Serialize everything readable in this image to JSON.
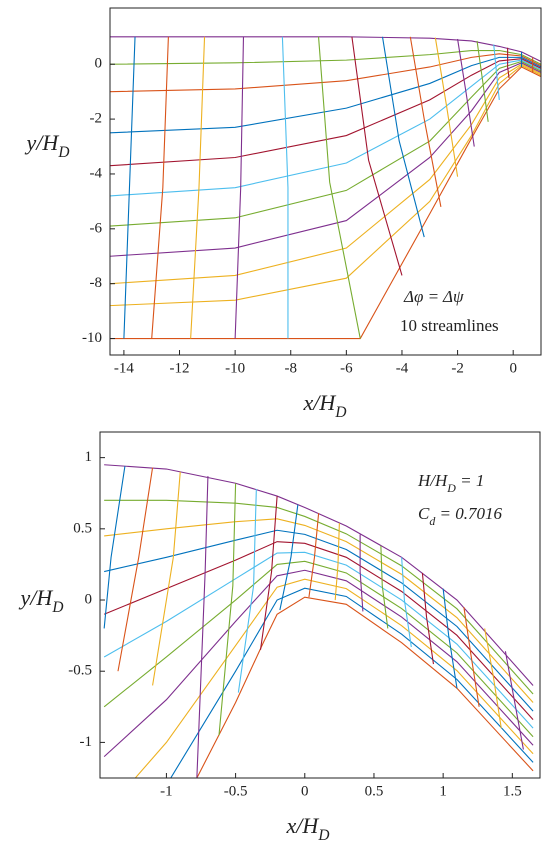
{
  "chart_data": [
    {
      "type": "line",
      "xlim": [
        -14.5,
        1
      ],
      "ylim": [
        -10.6,
        2.05
      ],
      "xticks": [
        -14,
        -12,
        -10,
        -8,
        -6,
        -4,
        -2,
        0
      ],
      "yticks": [
        -10,
        -8,
        -6,
        -4,
        -2,
        0
      ],
      "xlabel": [
        "x/H",
        "D"
      ],
      "ylabel": [
        "y/H",
        "D"
      ],
      "annotations": [
        [
          "Δφ = Δψ"
        ],
        [
          "10 streamlines"
        ]
      ],
      "series": [
        {
          "color": "#7E2F8E",
          "x": [
            -14.5,
            -10,
            -6,
            -3,
            -1.5,
            -0.5,
            0.3,
            1
          ],
          "y": [
            1,
            1,
            1,
            0.95,
            0.85,
            0.65,
            0.45,
            0.1
          ]
        },
        {
          "color": "#77AC30",
          "x": [
            -14.5,
            -10,
            -6,
            -3,
            -1.5,
            -0.5,
            0.3,
            1
          ],
          "y": [
            0,
            0.05,
            0.15,
            0.35,
            0.5,
            0.5,
            0.35,
            0
          ]
        },
        {
          "color": "#D95319",
          "x": [
            -14.5,
            -10,
            -6,
            -3,
            -1.5,
            -0.5,
            0.3,
            1
          ],
          "y": [
            -1,
            -0.9,
            -0.6,
            -0.1,
            0.25,
            0.38,
            0.3,
            -0.05
          ]
        },
        {
          "color": "#0072BD",
          "x": [
            -14.5,
            -10,
            -6,
            -3,
            -1.5,
            -0.5,
            0.3,
            1
          ],
          "y": [
            -2.5,
            -2.3,
            -1.6,
            -0.7,
            -0.05,
            0.25,
            0.25,
            -0.1
          ]
        },
        {
          "color": "#A2142F",
          "x": [
            -14.5,
            -10,
            -6,
            -3,
            -1.5,
            -0.5,
            0.3,
            1
          ],
          "y": [
            -3.7,
            -3.4,
            -2.6,
            -1.3,
            -0.4,
            0.12,
            0.2,
            -0.15
          ]
        },
        {
          "color": "#4DBEEE",
          "x": [
            -14.5,
            -10,
            -6,
            -3,
            -1.5,
            -0.5,
            0.3,
            1
          ],
          "y": [
            -4.8,
            -4.5,
            -3.6,
            -2,
            -0.8,
            0,
            0.15,
            -0.2
          ]
        },
        {
          "color": "#77AC30",
          "x": [
            -14.5,
            -10,
            -6,
            -3,
            -1.5,
            -0.5,
            0.3,
            1
          ],
          "y": [
            -5.9,
            -5.6,
            -4.6,
            -2.8,
            -1.2,
            -0.15,
            0.1,
            -0.25
          ]
        },
        {
          "color": "#7E2F8E",
          "x": [
            -14.5,
            -10,
            -6,
            -3,
            -1.5,
            -0.5,
            0.3,
            1
          ],
          "y": [
            -7,
            -6.7,
            -5.7,
            -3.4,
            -1.7,
            -0.3,
            0.05,
            -0.3
          ]
        },
        {
          "color": "#EDB120",
          "x": [
            -14.5,
            -10,
            -6,
            -3,
            -1.5,
            -0.5,
            0.3,
            1
          ],
          "y": [
            -8,
            -7.7,
            -6.7,
            -4.2,
            -2.2,
            -0.5,
            0,
            -0.35
          ]
        },
        {
          "color": "#EDB120",
          "x": [
            -14.5,
            -10,
            -6,
            -3,
            -1.5,
            -0.5,
            0.3,
            1
          ],
          "y": [
            -8.8,
            -8.6,
            -7.8,
            -5,
            -2.6,
            -0.7,
            -0.05,
            -0.4
          ]
        },
        {
          "color": "#D95319",
          "x": [
            -14.5,
            -10,
            -5.5,
            -3,
            -1.5,
            -0.5,
            0.3,
            1
          ],
          "y": [
            -10,
            -10,
            -10,
            -5.45,
            -2.7,
            -0.9,
            -0.1,
            -0.45
          ]
        },
        {
          "color": "#0072BD",
          "x": [
            -13.6,
            -13.8,
            -14
          ],
          "y": [
            1,
            -4.5,
            -10
          ]
        },
        {
          "color": "#D95319",
          "x": [
            -12.4,
            -12.6,
            -13
          ],
          "y": [
            1,
            -4.5,
            -10
          ]
        },
        {
          "color": "#EDB120",
          "x": [
            -11.1,
            -11.3,
            -11.6
          ],
          "y": [
            1,
            -4.5,
            -10
          ]
        },
        {
          "color": "#7E2F8E",
          "x": [
            -9.7,
            -9.8,
            -10
          ],
          "y": [
            1,
            -4.5,
            -10
          ]
        },
        {
          "color": "#4DBEEE",
          "x": [
            -8.3,
            -8.1,
            -8.1
          ],
          "y": [
            1,
            -4.5,
            -10
          ]
        },
        {
          "color": "#77AC30",
          "x": [
            -7,
            -6.6,
            -5.5
          ],
          "y": [
            1,
            -4.3,
            -10
          ]
        },
        {
          "color": "#A2142F",
          "x": [
            -5.8,
            -5.2,
            -4
          ],
          "y": [
            1,
            -3.5,
            -7.7
          ]
        },
        {
          "color": "#0072BD",
          "x": [
            -4.7,
            -4.1,
            -3.2
          ],
          "y": [
            1,
            -2.8,
            -6.3
          ]
        },
        {
          "color": "#D95319",
          "x": [
            -3.7,
            -3.2,
            -2.6
          ],
          "y": [
            1,
            -2,
            -5.2
          ]
        },
        {
          "color": "#EDB120",
          "x": [
            -2.8,
            -2.4,
            -2
          ],
          "y": [
            0.97,
            -1.5,
            -4.1
          ]
        },
        {
          "color": "#7E2F8E",
          "x": [
            -2,
            -1.7,
            -1.4
          ],
          "y": [
            0.92,
            -1,
            -3
          ]
        },
        {
          "color": "#77AC30",
          "x": [
            -1.3,
            -1.1,
            -0.9
          ],
          "y": [
            0.85,
            -0.6,
            -2.1
          ]
        },
        {
          "color": "#4DBEEE",
          "x": [
            -0.7,
            -0.6,
            -0.5
          ],
          "y": [
            0.72,
            -0.3,
            -1.3
          ]
        },
        {
          "color": "#A2142F",
          "x": [
            -0.2,
            -0.2,
            -0.15
          ],
          "y": [
            0.6,
            -0.1,
            -0.5
          ]
        },
        {
          "color": "#0072BD",
          "x": [
            0.3,
            0.3,
            0.3
          ],
          "y": [
            0.45,
            0.2,
            -0.1
          ]
        },
        {
          "color": "#D95319",
          "x": [
            0.7,
            0.7,
            0.7
          ],
          "y": [
            0.25,
            0,
            -0.3
          ]
        }
      ]
    },
    {
      "type": "line",
      "xlim": [
        -1.48,
        1.7
      ],
      "ylim": [
        -1.25,
        1.18
      ],
      "xticks": [
        -1,
        -0.5,
        0,
        0.5,
        1,
        1.5
      ],
      "yticks": [
        -1,
        -0.5,
        0,
        0.5,
        1
      ],
      "xlabel": [
        "x/H",
        "D"
      ],
      "ylabel": [
        "y/H",
        "D"
      ],
      "annotations": [
        [
          "H/H",
          "D",
          " = 1"
        ],
        [
          "C",
          "d",
          " = 0.7016"
        ]
      ],
      "series": [
        {
          "color": "#7E2F8E",
          "x": [
            -1.45,
            -1,
            -0.5,
            -0.2,
            0,
            0.3,
            0.7,
            1.1,
            1.65
          ],
          "y": [
            0.95,
            0.92,
            0.82,
            0.73,
            0.65,
            0.52,
            0.3,
            0,
            -0.6
          ]
        },
        {
          "color": "#77AC30",
          "x": [
            -1.45,
            -1,
            -0.5,
            -0.2,
            0,
            0.3,
            0.7,
            1.1,
            1.65
          ],
          "y": [
            0.7,
            0.7,
            0.68,
            0.65,
            0.587,
            0.465,
            0.24,
            -0.062,
            -0.66
          ]
        },
        {
          "color": "#EDB120",
          "x": [
            -1.45,
            -1,
            -0.5,
            -0.2,
            0,
            0.3,
            0.7,
            1.1,
            1.65
          ],
          "y": [
            0.45,
            0.5,
            0.55,
            0.57,
            0.524,
            0.41,
            0.18,
            -0.124,
            -0.72
          ]
        },
        {
          "color": "#0072BD",
          "x": [
            -1.45,
            -1,
            -0.5,
            -0.2,
            0,
            0.3,
            0.7,
            1.1,
            1.65
          ],
          "y": [
            0.2,
            0.3,
            0.42,
            0.49,
            0.461,
            0.355,
            0.12,
            -0.186,
            -0.78
          ]
        },
        {
          "color": "#A2142F",
          "x": [
            -1.45,
            -1,
            -0.5,
            -0.2,
            0,
            0.3,
            0.7,
            1.1,
            1.65
          ],
          "y": [
            -0.1,
            0.08,
            0.28,
            0.41,
            0.398,
            0.3,
            0.06,
            -0.248,
            -0.84
          ]
        },
        {
          "color": "#4DBEEE",
          "x": [
            -1.45,
            -1,
            -0.5,
            -0.2,
            0,
            0.3,
            0.7,
            1.1,
            1.65
          ],
          "y": [
            -0.4,
            -0.15,
            0.15,
            0.33,
            0.335,
            0.245,
            0,
            -0.31,
            -0.9
          ]
        },
        {
          "color": "#77AC30",
          "x": [
            -1.45,
            -1,
            -0.5,
            -0.2,
            0,
            0.3,
            0.7,
            1.1,
            1.65
          ],
          "y": [
            -0.75,
            -0.4,
            0,
            0.25,
            0.272,
            0.19,
            -0.06,
            -0.372,
            -0.96
          ]
        },
        {
          "color": "#7E2F8E",
          "x": [
            -1.45,
            -1,
            -0.5,
            -0.2,
            0,
            0.3,
            0.7,
            1.1,
            1.65
          ],
          "y": [
            -1.1,
            -0.7,
            -0.15,
            0.17,
            0.209,
            0.135,
            -0.12,
            -0.434,
            -1.02
          ]
        },
        {
          "color": "#EDB120",
          "x": [
            -1.45,
            -1,
            -0.5,
            -0.2,
            0,
            0.3,
            0.7,
            1.1,
            1.65
          ],
          "y": [
            -1.5,
            -1,
            -0.32,
            0.09,
            0.146,
            0.08,
            -0.18,
            -0.496,
            -1.08
          ]
        },
        {
          "color": "#0072BD",
          "x": [
            -1.45,
            -1,
            -0.5,
            -0.2,
            0,
            0.3,
            0.7,
            1.1,
            1.65
          ],
          "y": [
            -1.9,
            -1.3,
            -0.5,
            0,
            0.083,
            0.025,
            -0.24,
            -0.558,
            -1.14
          ]
        },
        {
          "color": "#D95319",
          "x": [
            -0.78,
            -0.5,
            -0.3,
            -0.2,
            0,
            0.3,
            0.7,
            1.1,
            1.65
          ],
          "y": [
            -1.25,
            -0.72,
            -0.3,
            -0.1,
            0.02,
            -0.03,
            -0.3,
            -0.62,
            -1.2
          ]
        },
        {
          "color": "#0072BD",
          "x": [
            -1.3,
            -1.4,
            -1.45
          ],
          "y": [
            0.94,
            0.3,
            -0.2
          ]
        },
        {
          "color": "#D95319",
          "x": [
            -1.1,
            -1.2,
            -1.35
          ],
          "y": [
            0.93,
            0.3,
            -0.5
          ]
        },
        {
          "color": "#EDB120",
          "x": [
            -0.9,
            -0.95,
            -1.1
          ],
          "y": [
            0.9,
            0.3,
            -0.6
          ]
        },
        {
          "color": "#7E2F8E",
          "x": [
            -0.7,
            -0.72,
            -0.78
          ],
          "y": [
            0.87,
            0.2,
            -1.25
          ]
        },
        {
          "color": "#77AC30",
          "x": [
            -0.5,
            -0.52,
            -0.62
          ],
          "y": [
            0.82,
            0.1,
            -0.95
          ]
        },
        {
          "color": "#4DBEEE",
          "x": [
            -0.35,
            -0.37,
            -0.48
          ],
          "y": [
            0.78,
            0.1,
            -0.65
          ]
        },
        {
          "color": "#A2142F",
          "x": [
            -0.2,
            -0.24,
            -0.32
          ],
          "y": [
            0.73,
            0.2,
            -0.35
          ]
        },
        {
          "color": "#0072BD",
          "x": [
            -0.05,
            -0.1,
            -0.18
          ],
          "y": [
            0.67,
            0.3,
            -0.07
          ]
        },
        {
          "color": "#D95319",
          "x": [
            0.1,
            0.07,
            0.03
          ],
          "y": [
            0.61,
            0.3,
            0.02
          ]
        },
        {
          "color": "#EDB120",
          "x": [
            0.25,
            0.24,
            0.22
          ],
          "y": [
            0.54,
            0.25,
            0
          ]
        },
        {
          "color": "#7E2F8E",
          "x": [
            0.4,
            0.4,
            0.42
          ],
          "y": [
            0.46,
            0.2,
            -0.08
          ]
        },
        {
          "color": "#77AC30",
          "x": [
            0.55,
            0.56,
            0.6
          ],
          "y": [
            0.38,
            0.1,
            -0.2
          ]
        },
        {
          "color": "#4DBEEE",
          "x": [
            0.7,
            0.72,
            0.77
          ],
          "y": [
            0.3,
            0,
            -0.33
          ]
        },
        {
          "color": "#A2142F",
          "x": [
            0.85,
            0.88,
            0.93
          ],
          "y": [
            0.19,
            -0.12,
            -0.45
          ]
        },
        {
          "color": "#0072BD",
          "x": [
            1,
            1.04,
            1.1
          ],
          "y": [
            0.08,
            -0.25,
            -0.62
          ]
        },
        {
          "color": "#D95319",
          "x": [
            1.15,
            1.2,
            1.26
          ],
          "y": [
            -0.05,
            -0.38,
            -0.75
          ]
        },
        {
          "color": "#EDB120",
          "x": [
            1.3,
            1.36,
            1.42
          ],
          "y": [
            -0.2,
            -0.52,
            -0.9
          ]
        },
        {
          "color": "#7E2F8E",
          "x": [
            1.45,
            1.51,
            1.58
          ],
          "y": [
            -0.36,
            -0.68,
            -1.05
          ]
        }
      ]
    }
  ]
}
